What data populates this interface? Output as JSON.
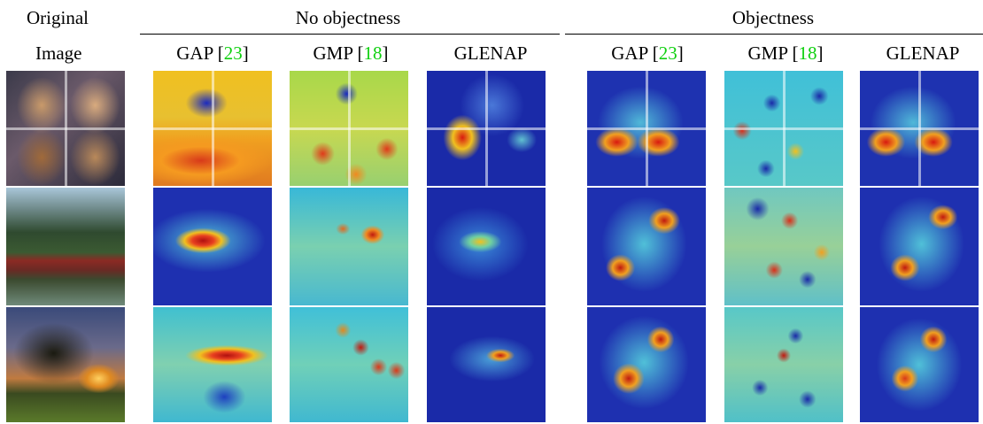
{
  "header": {
    "original_line1": "Original",
    "original_line2": "Image",
    "group_no_objectness": "No objectness",
    "group_objectness": "Objectness"
  },
  "columns": [
    {
      "name": "GAP",
      "ref": "23"
    },
    {
      "name": "GMP",
      "ref": "18"
    },
    {
      "name": "GLENAP",
      "ref": ""
    },
    {
      "name": "GAP",
      "ref": "23"
    },
    {
      "name": "GMP",
      "ref": "18"
    },
    {
      "name": "GLENAP",
      "ref": ""
    }
  ],
  "bracket": {
    "open": "[",
    "close": "]"
  },
  "colors": {
    "reference_link": "#10d010",
    "rule": "#000000"
  }
}
